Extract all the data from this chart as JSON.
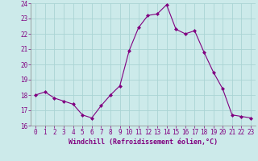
{
  "x": [
    0,
    1,
    2,
    3,
    4,
    5,
    6,
    7,
    8,
    9,
    10,
    11,
    12,
    13,
    14,
    15,
    16,
    17,
    18,
    19,
    20,
    21,
    22,
    23
  ],
  "y": [
    18.0,
    18.2,
    17.8,
    17.6,
    17.4,
    16.7,
    16.5,
    17.3,
    18.0,
    18.6,
    20.9,
    22.4,
    23.2,
    23.3,
    23.9,
    22.3,
    22.0,
    22.2,
    20.8,
    19.5,
    18.4,
    16.7,
    16.6,
    16.5
  ],
  "line_color": "#800080",
  "marker": "D",
  "marker_size": 2,
  "bg_color": "#cceaea",
  "grid_color": "#aad4d4",
  "xlabel": "Windchill (Refroidissement éolien,°C)",
  "xlabel_color": "#800080",
  "tick_color": "#800080",
  "ylim": [
    16,
    24
  ],
  "xlim": [
    -0.5,
    23.5
  ],
  "yticks": [
    16,
    17,
    18,
    19,
    20,
    21,
    22,
    23,
    24
  ],
  "xticks": [
    0,
    1,
    2,
    3,
    4,
    5,
    6,
    7,
    8,
    9,
    10,
    11,
    12,
    13,
    14,
    15,
    16,
    17,
    18,
    19,
    20,
    21,
    22,
    23
  ],
  "tick_fontsize": 5.5,
  "xlabel_fontsize": 6.0
}
